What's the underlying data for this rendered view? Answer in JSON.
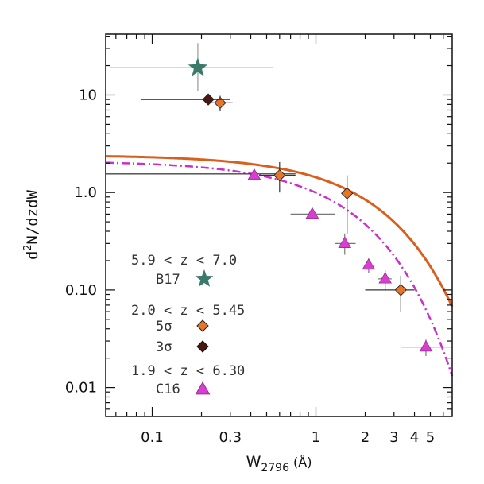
{
  "chart_data": {
    "type": "scatter",
    "xscale": "log",
    "yscale": "log",
    "xlim": [
      0.052,
      6.8
    ],
    "ylim": [
      0.00505,
      42
    ],
    "xlabel": {
      "main": "W",
      "sub": "2796",
      "unit": "(Å)"
    },
    "ylabel": {
      "main": "d",
      "sup": "2",
      "rest": "N/dzdW"
    },
    "xticks": [
      {
        "v": 0.1,
        "label": "0.1"
      },
      {
        "v": 0.3,
        "label": "0.3"
      },
      {
        "v": 1,
        "label": "1"
      },
      {
        "v": 2,
        "label": "2"
      },
      {
        "v": 3,
        "label": "3"
      },
      {
        "v": 4,
        "label": "4"
      },
      {
        "v": 5,
        "label": "5"
      }
    ],
    "yticks": [
      {
        "v": 0.01,
        "label": "0.01"
      },
      {
        "v": 0.1,
        "label": "0.10"
      },
      {
        "v": 1,
        "label": "1.0"
      },
      {
        "v": 10,
        "label": "10"
      }
    ],
    "series": [
      {
        "name": "C16",
        "marker": "triangle",
        "color": "#d63fd0",
        "points": [
          {
            "x": 0.42,
            "y": 1.5,
            "xerr": [
              0.42,
              0.42
            ],
            "yerr": [
              1.5,
              1.5
            ]
          },
          {
            "x": 0.95,
            "y": 0.6,
            "xerr": [
              0.7,
              1.3
            ],
            "yerr": [
              0.6,
              0.6
            ]
          },
          {
            "x": 1.5,
            "y": 0.3,
            "xerr": [
              1.3,
              1.75
            ],
            "yerr": [
              0.23,
              0.38
            ]
          },
          {
            "x": 2.1,
            "y": 0.18,
            "xerr": [
              1.9,
              2.3
            ],
            "yerr": [
              0.15,
              0.21
            ]
          },
          {
            "x": 2.65,
            "y": 0.13,
            "xerr": [
              2.4,
              2.9
            ],
            "yerr": [
              0.1,
              0.16
            ]
          },
          {
            "x": 4.7,
            "y": 0.026,
            "xerr": [
              3.3,
              7.0
            ],
            "yerr": [
              0.021,
              0.031
            ]
          }
        ]
      },
      {
        "name": "5σ",
        "marker": "diamond",
        "color": "#e8742a",
        "points": [
          {
            "x": 0.26,
            "y": 8.3,
            "xerr": [
              0.21,
              0.31
            ],
            "yerr": [
              6.8,
              9.8
            ]
          },
          {
            "x": 0.6,
            "y": 1.5,
            "xerr": [
              0.45,
              0.75
            ],
            "yerr": [
              1.0,
              2.05
            ]
          },
          {
            "x": 1.55,
            "y": 0.98,
            "xerr": [
              1.55,
              1.55
            ],
            "yerr": [
              0.38,
              1.5
            ]
          },
          {
            "x": 3.3,
            "y": 0.1,
            "xerr": [
              2.0,
              4.0
            ],
            "yerr": [
              0.06,
              0.14
            ]
          }
        ]
      },
      {
        "name": "3σ",
        "marker": "diamond",
        "color": "#4a1812",
        "points": [
          {
            "x": 0.22,
            "y": 9.0,
            "xerr": [
              0.085,
              0.3
            ],
            "yerr": [
              9.0,
              9.0
            ]
          }
        ]
      },
      {
        "name": "B17",
        "marker": "star",
        "color": "#3a7a6a",
        "points": [
          {
            "x": 0.19,
            "y": 19,
            "xerr": [
              0.055,
              0.55
            ],
            "yerr": [
              11,
              34
            ]
          }
        ]
      }
    ],
    "extra_hlines": [
      {
        "y": 1.55,
        "x0": 0.052,
        "x1": 0.75,
        "color": "#444444"
      }
    ],
    "curves": [
      {
        "name": "fit-5sigma",
        "style": "solid",
        "color": "#d95f1e",
        "N": 2.42,
        "W": 1.9,
        "xmin": 0.052,
        "xmax": 6.8
      },
      {
        "name": "fit-C16",
        "style": "dashdot",
        "color": "#c92fc9",
        "N": 2.1,
        "W": 1.34,
        "xmin": 0.052,
        "xmax": 6.8
      }
    ],
    "legend": {
      "groups": [
        {
          "title": "5.9 < z < 7.0",
          "entries": [
            {
              "label": "B17",
              "marker": "star",
              "color": "#3a7a6a"
            }
          ]
        },
        {
          "title": "2.0 < z < 5.45",
          "entries": [
            {
              "label": "5σ",
              "marker": "diamond",
              "color": "#e8742a"
            },
            {
              "label": "3σ",
              "marker": "diamond",
              "color": "#4a1812"
            }
          ]
        },
        {
          "title": "1.9 < z < 6.30",
          "entries": [
            {
              "label": "C16",
              "marker": "triangle",
              "color": "#d63fd0"
            }
          ]
        }
      ]
    }
  }
}
